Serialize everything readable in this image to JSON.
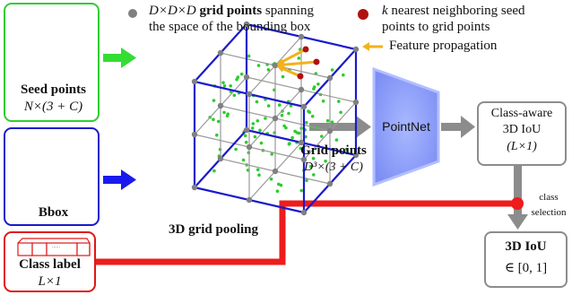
{
  "seed": {
    "label": "Seed points",
    "formula": "N×(3 + C)",
    "color": "#33cc33"
  },
  "bbox": {
    "label": "Bbox",
    "color": "#1a1acc"
  },
  "class_label": {
    "label": "Class label",
    "formula": "L×1",
    "dots": "......",
    "color": "#e01818"
  },
  "legend": {
    "grid_points_prefix": "D×D×D",
    "grid_points_bold": "grid points",
    "grid_points_rest": "spanning",
    "grid_points_line2": "the space of the bounding box",
    "knn_prefix": "k",
    "knn_line1": "nearest neighboring seed",
    "knn_line2": "points to grid points",
    "feature_prop": "Feature propagation",
    "gray_dot_color": "#808080",
    "red_dot_color": "#b01010",
    "arrow_color": "#f2b21a"
  },
  "grid_pooling": {
    "caption": "3D grid pooling"
  },
  "grid_points": {
    "label": "Grid points",
    "formula": "D³×(3 + C)"
  },
  "pointnet": {
    "label": "PointNet",
    "color": "#8a9bff"
  },
  "class_aware": {
    "line1": "Class-aware",
    "line2": "3D IoU",
    "line3": "(L×1)"
  },
  "class_selection": {
    "line1": "class",
    "line2": "selection"
  },
  "iou": {
    "title": "3D IoU",
    "range": "∈ [0, 1]"
  }
}
